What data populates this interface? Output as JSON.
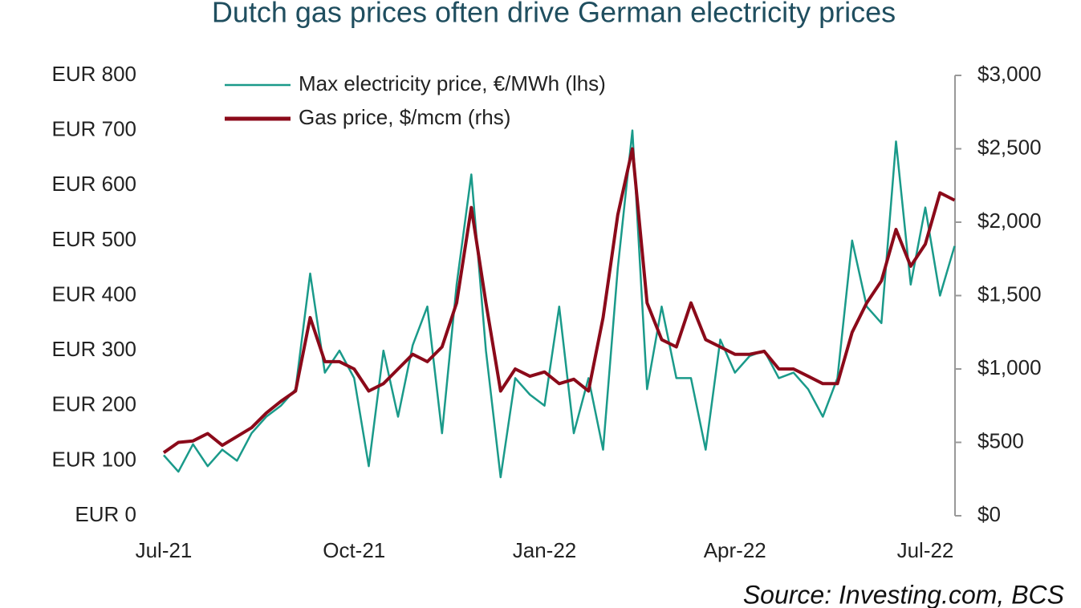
{
  "chart_data": {
    "type": "line",
    "title": "Dutch gas prices often drive German electricity prices",
    "source": "Source: Investing.com, BCS",
    "categories": [
      "Jul-21",
      null,
      null,
      null,
      null,
      null,
      null,
      null,
      null,
      null,
      null,
      null,
      null,
      "Oct-21",
      null,
      null,
      null,
      null,
      null,
      null,
      null,
      null,
      null,
      null,
      null,
      null,
      "Jan-22",
      null,
      null,
      null,
      null,
      null,
      null,
      null,
      null,
      null,
      null,
      null,
      null,
      "Apr-22",
      null,
      null,
      null,
      null,
      null,
      null,
      null,
      null,
      null,
      null,
      null,
      null,
      "Jul-22",
      null,
      null
    ],
    "series": [
      {
        "name": "Max electricity price, €/MWh (lhs)",
        "color": "#1a9a8a",
        "axis": "y",
        "values": [
          110,
          80,
          130,
          90,
          120,
          100,
          150,
          180,
          200,
          230,
          440,
          260,
          300,
          250,
          90,
          300,
          180,
          310,
          380,
          150,
          420,
          620,
          300,
          70,
          250,
          220,
          200,
          380,
          150,
          250,
          120,
          450,
          700,
          230,
          380,
          250,
          250,
          120,
          320,
          260,
          290,
          300,
          250,
          260,
          230,
          180,
          250,
          500,
          380,
          350,
          680,
          420,
          560,
          400,
          490
        ]
      },
      {
        "name": "Gas price, $/mcm (rhs)",
        "color": "#8b0a1a",
        "axis": "y2",
        "values": [
          430,
          500,
          510,
          560,
          480,
          540,
          600,
          700,
          780,
          850,
          1350,
          1050,
          1050,
          1000,
          850,
          900,
          1000,
          1100,
          1050,
          1150,
          1450,
          2100,
          1450,
          850,
          1000,
          950,
          980,
          900,
          930,
          850,
          1350,
          2050,
          2500,
          1450,
          1200,
          1150,
          1450,
          1200,
          1150,
          1100,
          1100,
          1120,
          1000,
          1000,
          950,
          900,
          900,
          1250,
          1450,
          1600,
          1950,
          1700,
          1850,
          2200,
          2150
        ]
      }
    ],
    "ylim": [
      0,
      800
    ],
    "yticks": [
      {
        "value": 0,
        "label": "EUR 0"
      },
      {
        "value": 100,
        "label": "EUR 100"
      },
      {
        "value": 200,
        "label": "EUR 200"
      },
      {
        "value": 300,
        "label": "EUR 300"
      },
      {
        "value": 400,
        "label": "EUR 400"
      },
      {
        "value": 500,
        "label": "EUR 500"
      },
      {
        "value": 600,
        "label": "EUR 600"
      },
      {
        "value": 700,
        "label": "EUR 700"
      },
      {
        "value": 800,
        "label": "EUR 800"
      }
    ],
    "y2lim": [
      0,
      3000
    ],
    "y2ticks": [
      {
        "value": 0,
        "label": "$0"
      },
      {
        "value": 500,
        "label": "$500"
      },
      {
        "value": 1000,
        "label": "$1,000"
      },
      {
        "value": 1500,
        "label": "$1,500"
      },
      {
        "value": 2000,
        "label": "$2,000"
      },
      {
        "value": 2500,
        "label": "$2,500"
      },
      {
        "value": 3000,
        "label": "$3,000"
      }
    ],
    "grid": false,
    "legend": "top-left"
  }
}
